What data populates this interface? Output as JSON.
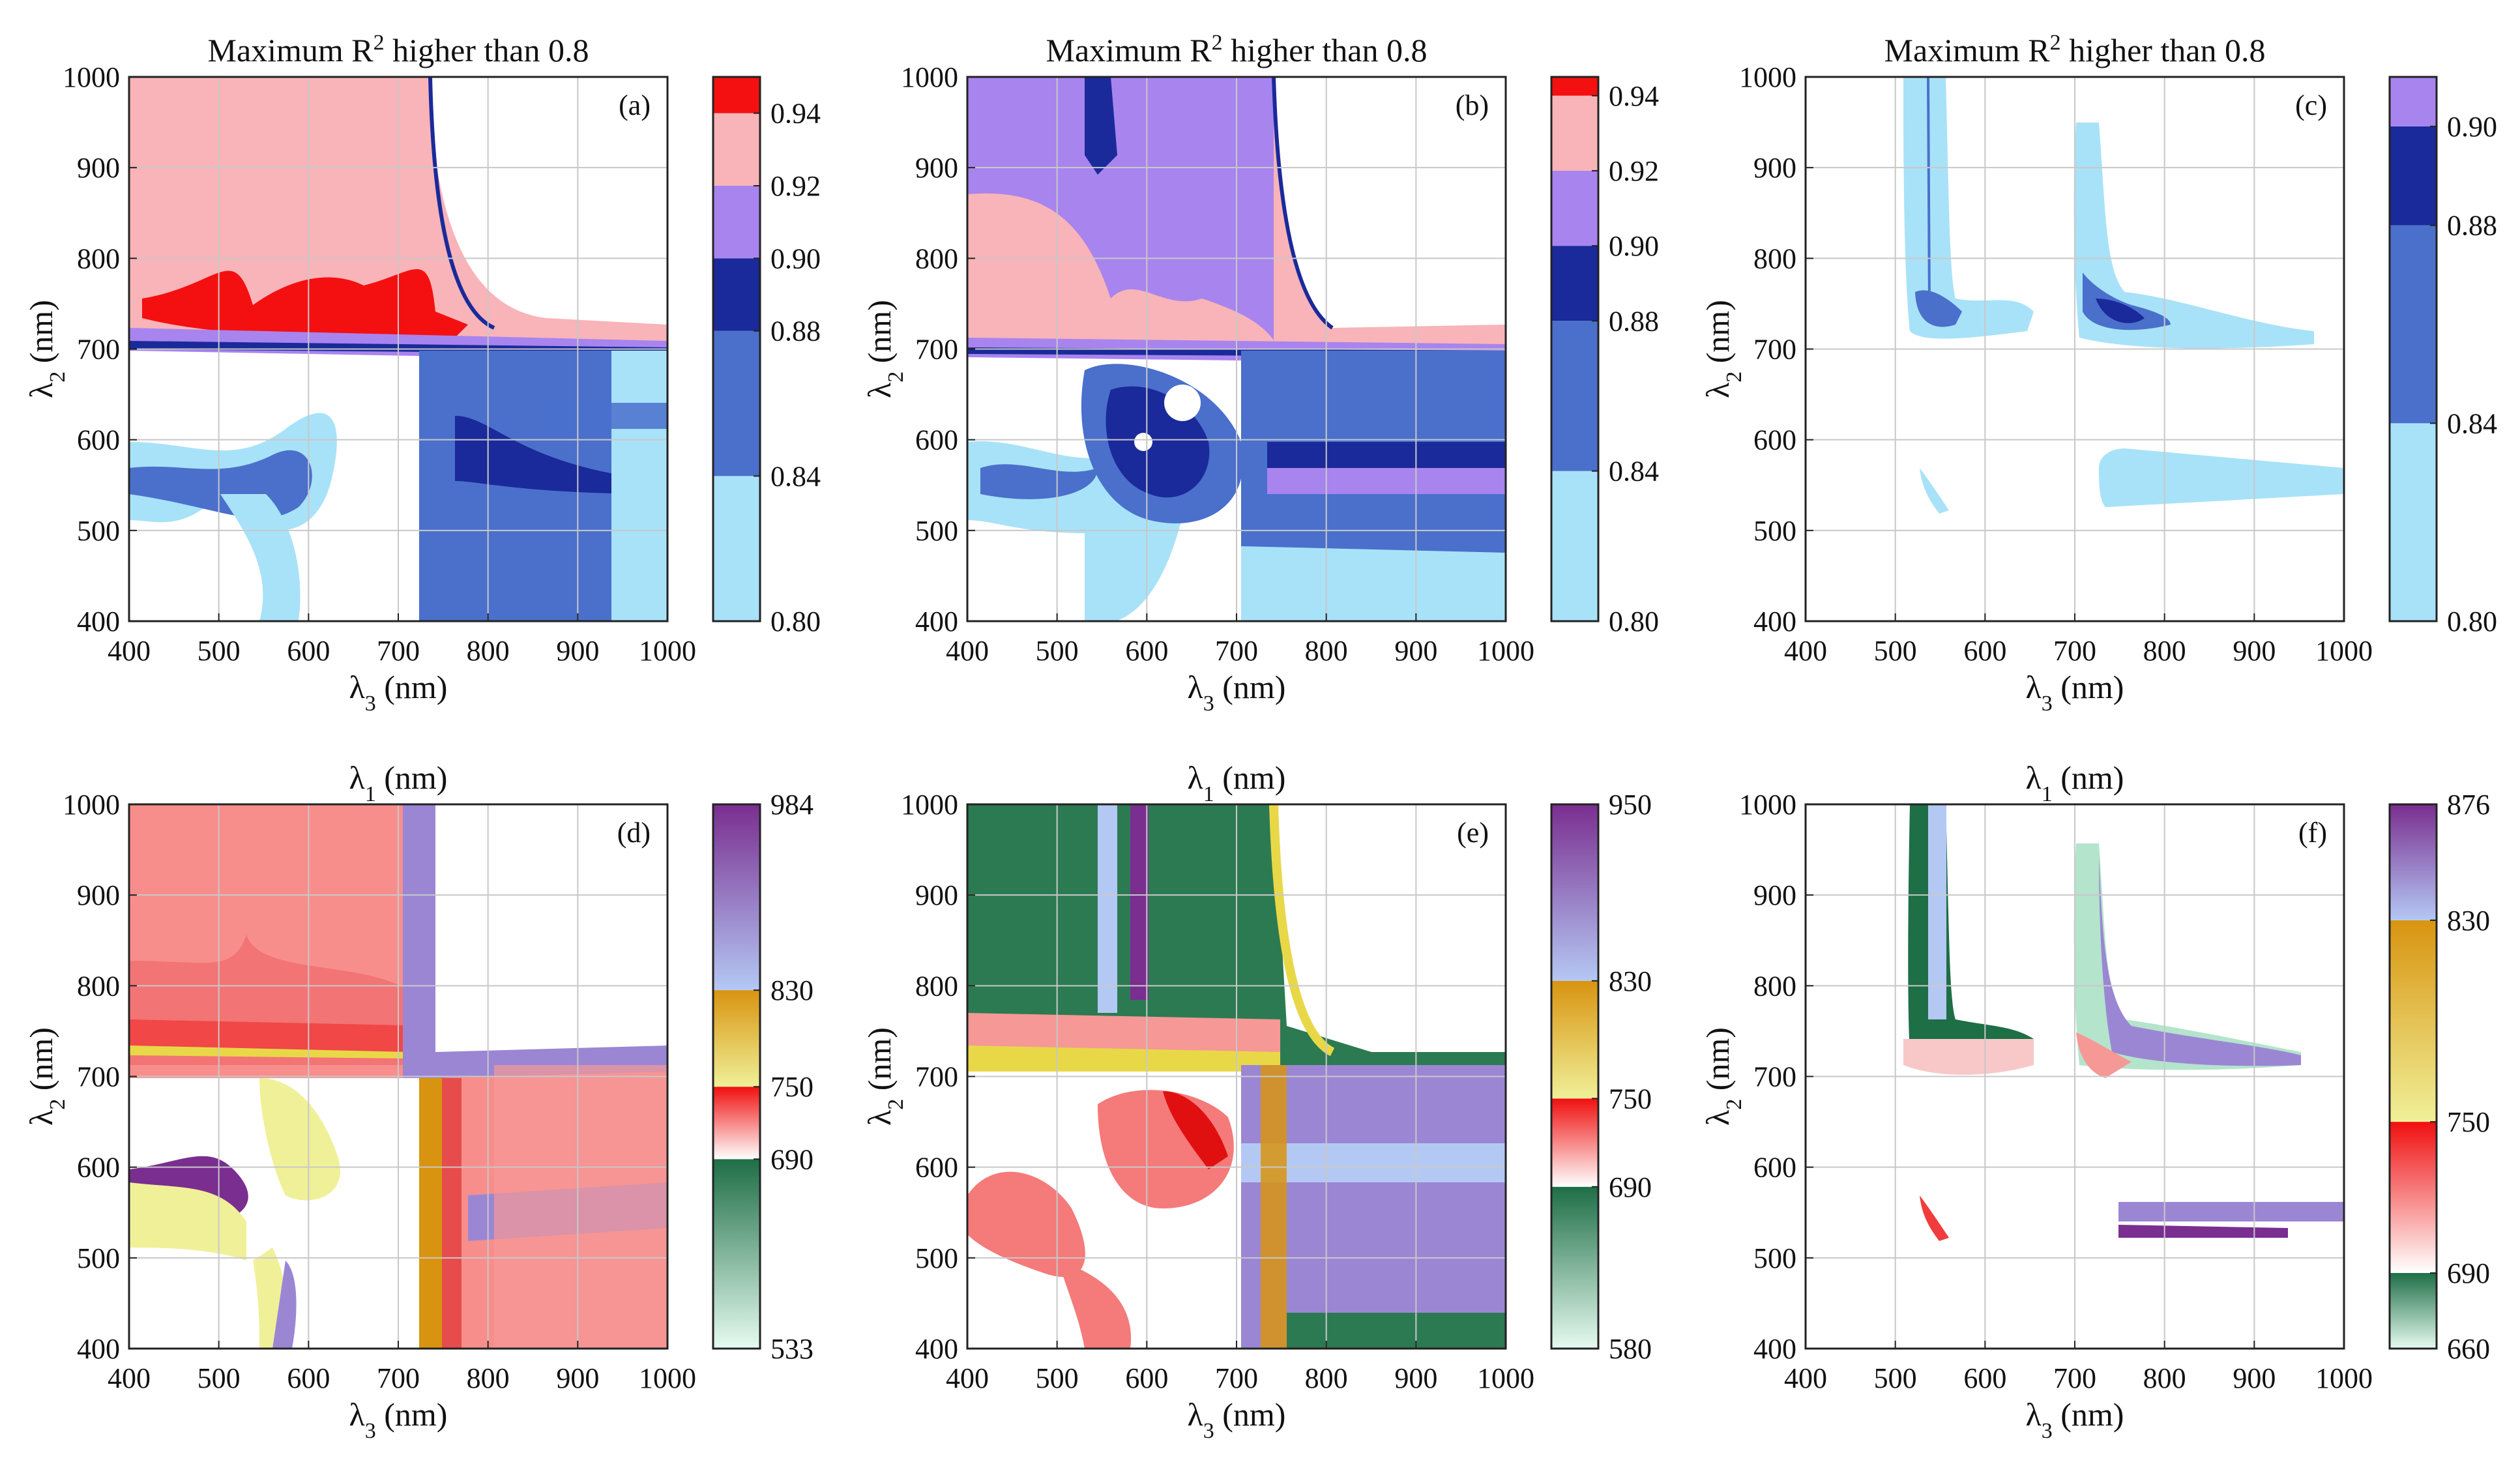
{
  "figure": {
    "panels": [
      {
        "id": "a",
        "title_main": "Maximum  R",
        "title_sup": "2",
        "title_rest": "  higher than 0.8",
        "label": "(a)",
        "xlabel_symbol": "λ",
        "xlabel_sub": "3",
        "xlabel_unit": " (nm)",
        "ylabel_symbol": "λ",
        "ylabel_sub": "2",
        "ylabel_unit": " (nm)",
        "xticks": [
          "400",
          "500",
          "600",
          "700",
          "800",
          "900",
          "1000"
        ],
        "yticks": [
          "400",
          "500",
          "600",
          "700",
          "800",
          "900",
          "1000"
        ],
        "cbar": {
          "min": 0.8,
          "max": 0.95,
          "segments": [
            {
              "from": 0.8,
              "to": 0.84,
              "color": "#a8e2f8"
            },
            {
              "from": 0.84,
              "to": 0.88,
              "color": "#4a70cc"
            },
            {
              "from": 0.88,
              "to": 0.9,
              "color": "#1a2a9a"
            },
            {
              "from": 0.9,
              "to": 0.92,
              "color": "#a884ee"
            },
            {
              "from": 0.92,
              "to": 0.94,
              "color": "#f8b4b8"
            },
            {
              "from": 0.94,
              "to": 0.95,
              "color": "#f41010"
            }
          ],
          "ticks": [
            {
              "v": 0.8,
              "t": "0.80"
            },
            {
              "v": 0.84,
              "t": "0.84"
            },
            {
              "v": 0.88,
              "t": "0.88"
            },
            {
              "v": 0.9,
              "t": "0.90"
            },
            {
              "v": 0.92,
              "t": "0.92"
            },
            {
              "v": 0.94,
              "t": "0.94"
            }
          ]
        }
      },
      {
        "id": "b",
        "title_main": "Maximum R",
        "title_sup": "2",
        "title_rest": " higher than 0.8",
        "label": "(b)",
        "xlabel_symbol": "λ",
        "xlabel_sub": "3",
        "xlabel_unit": " (nm)",
        "ylabel_symbol": "λ",
        "ylabel_sub": "2",
        "ylabel_unit": " (nm)",
        "xticks": [
          "400",
          "500",
          "600",
          "700",
          "800",
          "900",
          "1000"
        ],
        "yticks": [
          "400",
          "500",
          "600",
          "700",
          "800",
          "900",
          "1000"
        ],
        "cbar": {
          "min": 0.8,
          "max": 0.945,
          "segments": [
            {
              "from": 0.8,
              "to": 0.84,
              "color": "#a8e2f8"
            },
            {
              "from": 0.84,
              "to": 0.88,
              "color": "#4a70cc"
            },
            {
              "from": 0.88,
              "to": 0.9,
              "color": "#1a2a9a"
            },
            {
              "from": 0.9,
              "to": 0.92,
              "color": "#a884ee"
            },
            {
              "from": 0.92,
              "to": 0.94,
              "color": "#f8b4b8"
            },
            {
              "from": 0.94,
              "to": 0.945,
              "color": "#f41010"
            }
          ],
          "ticks": [
            {
              "v": 0.8,
              "t": "0.80"
            },
            {
              "v": 0.84,
              "t": "0.84"
            },
            {
              "v": 0.88,
              "t": "0.88"
            },
            {
              "v": 0.9,
              "t": "0.90"
            },
            {
              "v": 0.92,
              "t": "0.92"
            },
            {
              "v": 0.94,
              "t": "0.94"
            }
          ]
        }
      },
      {
        "id": "c",
        "title_main": "Maximum R",
        "title_sup": "2",
        "title_rest": " higher than 0.8",
        "label": "(c)",
        "xlabel_symbol": "λ",
        "xlabel_sub": "3",
        "xlabel_unit": " (nm)",
        "ylabel_symbol": "λ",
        "ylabel_sub": "2",
        "ylabel_unit": " (nm)",
        "xticks": [
          "400",
          "500",
          "600",
          "700",
          "800",
          "900",
          "1000"
        ],
        "yticks": [
          "400",
          "500",
          "600",
          "700",
          "800",
          "900",
          "1000"
        ],
        "cbar": {
          "min": 0.8,
          "max": 0.91,
          "segments": [
            {
              "from": 0.8,
              "to": 0.84,
              "color": "#a8e2f8"
            },
            {
              "from": 0.84,
              "to": 0.88,
              "color": "#4a70cc"
            },
            {
              "from": 0.88,
              "to": 0.9,
              "color": "#1a2a9a"
            },
            {
              "from": 0.9,
              "to": 0.91,
              "color": "#a884ee"
            }
          ],
          "ticks": [
            {
              "v": 0.8,
              "t": "0.80"
            },
            {
              "v": 0.84,
              "t": "0.84"
            },
            {
              "v": 0.88,
              "t": "0.88"
            },
            {
              "v": 0.9,
              "t": "0.90"
            }
          ]
        }
      },
      {
        "id": "d",
        "title_main": "λ",
        "title_sub": "1",
        "title_rest": " (nm)",
        "label": "(d)",
        "xlabel_symbol": "λ",
        "xlabel_sub": "3",
        "xlabel_unit": " (nm)",
        "ylabel_symbol": "λ",
        "ylabel_sub": "2",
        "ylabel_unit": " (nm)",
        "xticks": [
          "400",
          "500",
          "600",
          "700",
          "800",
          "900",
          "1000"
        ],
        "yticks": [
          "400",
          "500",
          "600",
          "700",
          "800",
          "900",
          "1000"
        ],
        "cbar": {
          "min": 533,
          "max": 984,
          "segments": [
            {
              "from": 533,
              "to": 690,
              "c0": "#e6fbf0",
              "c1": "#1e6e46"
            },
            {
              "from": 690,
              "to": 750,
              "c0": "#ffffff",
              "c1": "#f01010"
            },
            {
              "from": 750,
              "to": 830,
              "c0": "#f0f098",
              "c1": "#d89410"
            },
            {
              "from": 830,
              "to": 984,
              "c0": "#b4c8f4",
              "c1": "#7a2e90"
            }
          ],
          "ticks": [
            {
              "v": 533,
              "t": "533"
            },
            {
              "v": 690,
              "t": "690"
            },
            {
              "v": 750,
              "t": "750"
            },
            {
              "v": 830,
              "t": "830"
            },
            {
              "v": 984,
              "t": "984"
            }
          ]
        }
      },
      {
        "id": "e",
        "title_main": "λ",
        "title_sub": "1",
        "title_rest": " (nm)",
        "label": "(e)",
        "xlabel_symbol": "λ",
        "xlabel_sub": "3",
        "xlabel_unit": " (nm)",
        "ylabel_symbol": "λ",
        "ylabel_sub": "2",
        "ylabel_unit": " (nm)",
        "xticks": [
          "400",
          "500",
          "600",
          "700",
          "800",
          "900",
          "1000"
        ],
        "yticks": [
          "400",
          "500",
          "600",
          "700",
          "800",
          "900",
          "1000"
        ],
        "cbar": {
          "min": 580,
          "max": 950,
          "segments": [
            {
              "from": 580,
              "to": 690,
              "c0": "#e6fbf0",
              "c1": "#1e6e46"
            },
            {
              "from": 690,
              "to": 750,
              "c0": "#ffffff",
              "c1": "#f01010"
            },
            {
              "from": 750,
              "to": 830,
              "c0": "#f0f098",
              "c1": "#d89410"
            },
            {
              "from": 830,
              "to": 950,
              "c0": "#b4c8f4",
              "c1": "#7a2e90"
            }
          ],
          "ticks": [
            {
              "v": 580,
              "t": "580"
            },
            {
              "v": 690,
              "t": "690"
            },
            {
              "v": 750,
              "t": "750"
            },
            {
              "v": 830,
              "t": "830"
            },
            {
              "v": 950,
              "t": "950"
            }
          ]
        }
      },
      {
        "id": "f",
        "title_main": "λ",
        "title_sub": "1",
        "title_rest": " (nm)",
        "label": "(f)",
        "xlabel_symbol": "λ",
        "xlabel_sub": "3",
        "xlabel_unit": " (nm)",
        "ylabel_symbol": "λ",
        "ylabel_sub": "2",
        "ylabel_unit": " (nm)",
        "xticks": [
          "400",
          "500",
          "600",
          "700",
          "800",
          "900",
          "1000"
        ],
        "yticks": [
          "400",
          "500",
          "600",
          "700",
          "800",
          "900",
          "1000"
        ],
        "cbar": {
          "min": 660,
          "max": 876,
          "segments": [
            {
              "from": 660,
              "to": 690,
              "c0": "#e6fbf0",
              "c1": "#1e6e46"
            },
            {
              "from": 690,
              "to": 750,
              "c0": "#ffffff",
              "c1": "#f01010"
            },
            {
              "from": 750,
              "to": 830,
              "c0": "#f0f098",
              "c1": "#d89410"
            },
            {
              "from": 830,
              "to": 876,
              "c0": "#b4c8f4",
              "c1": "#7a2e90"
            }
          ],
          "ticks": [
            {
              "v": 660,
              "t": "660"
            },
            {
              "v": 690,
              "t": "690"
            },
            {
              "v": 750,
              "t": "750"
            },
            {
              "v": 830,
              "t": "830"
            },
            {
              "v": 876,
              "t": "876"
            }
          ]
        }
      }
    ]
  },
  "chart_data": [
    {
      "type": "heatmap",
      "panel": "a",
      "title": "Maximum R2 higher than 0.8",
      "xlabel": "λ3 (nm)",
      "ylabel": "λ2 (nm)",
      "xlim": [
        400,
        1000
      ],
      "ylim": [
        400,
        1000
      ],
      "grid": true,
      "colorbar": {
        "label": "Maximum R2",
        "levels": [
          0.8,
          0.84,
          0.88,
          0.9,
          0.92,
          0.94
        ]
      }
    },
    {
      "type": "heatmap",
      "panel": "b",
      "title": "Maximum R2 higher than 0.8",
      "xlabel": "λ3 (nm)",
      "ylabel": "λ2 (nm)",
      "xlim": [
        400,
        1000
      ],
      "ylim": [
        400,
        1000
      ],
      "grid": true,
      "colorbar": {
        "label": "Maximum R2",
        "levels": [
          0.8,
          0.84,
          0.88,
          0.9,
          0.92,
          0.94
        ]
      }
    },
    {
      "type": "heatmap",
      "panel": "c",
      "title": "Maximum R2 higher than 0.8",
      "xlabel": "λ3 (nm)",
      "ylabel": "λ2 (nm)",
      "xlim": [
        400,
        1000
      ],
      "ylim": [
        400,
        1000
      ],
      "grid": true,
      "colorbar": {
        "label": "Maximum R2",
        "levels": [
          0.8,
          0.84,
          0.88,
          0.9
        ]
      }
    },
    {
      "type": "heatmap",
      "panel": "d",
      "title": "λ1 (nm)",
      "xlabel": "λ3 (nm)",
      "ylabel": "λ2 (nm)",
      "xlim": [
        400,
        1000
      ],
      "ylim": [
        400,
        1000
      ],
      "grid": true,
      "colorbar": {
        "label": "λ1 (nm)",
        "levels": [
          533,
          690,
          750,
          830,
          984
        ]
      }
    },
    {
      "type": "heatmap",
      "panel": "e",
      "title": "λ1 (nm)",
      "xlabel": "λ3 (nm)",
      "ylabel": "λ2 (nm)",
      "xlim": [
        400,
        1000
      ],
      "ylim": [
        400,
        1000
      ],
      "grid": true,
      "colorbar": {
        "label": "λ1 (nm)",
        "levels": [
          580,
          690,
          750,
          830,
          950
        ]
      }
    },
    {
      "type": "heatmap",
      "panel": "f",
      "title": "λ1 (nm)",
      "xlabel": "λ3 (nm)",
      "ylabel": "λ2 (nm)",
      "xlim": [
        400,
        1000
      ],
      "ylim": [
        400,
        1000
      ],
      "grid": true,
      "colorbar": {
        "label": "λ1 (nm)",
        "levels": [
          660,
          690,
          750,
          830,
          876
        ]
      }
    }
  ]
}
